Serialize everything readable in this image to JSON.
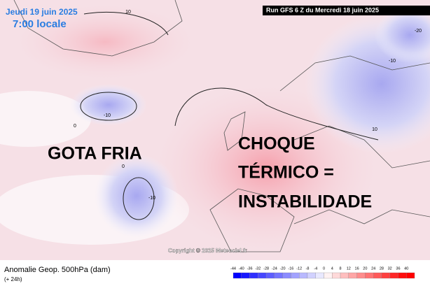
{
  "header": {
    "date": "Jeudi 19 juin 2025",
    "time": "7:00 locale",
    "run": "Run GFS 6 Z du Mercredi 18 juin 2025"
  },
  "annotations": {
    "left": "GOTA FRIA",
    "right_lines": [
      "CHOQUE",
      "TÉRMICO =",
      "INSTABILIDADE"
    ]
  },
  "contour_labels": [
    "10",
    "-10",
    "0",
    "0",
    "-10",
    "-20",
    "-10",
    "10"
  ],
  "copyright": "Copyright © 2025 Meteociel.fr",
  "footer": {
    "title": "Anomalie Geop. 500hPa (dam)",
    "subtitle": "(+ 24h)"
  },
  "colorbar": {
    "labels": [
      -44,
      -40,
      -36,
      -32,
      -28,
      -24,
      -20,
      -16,
      -12,
      -8,
      -4,
      0,
      4,
      8,
      12,
      16,
      20,
      24,
      28,
      32,
      36,
      40
    ]
  }
}
